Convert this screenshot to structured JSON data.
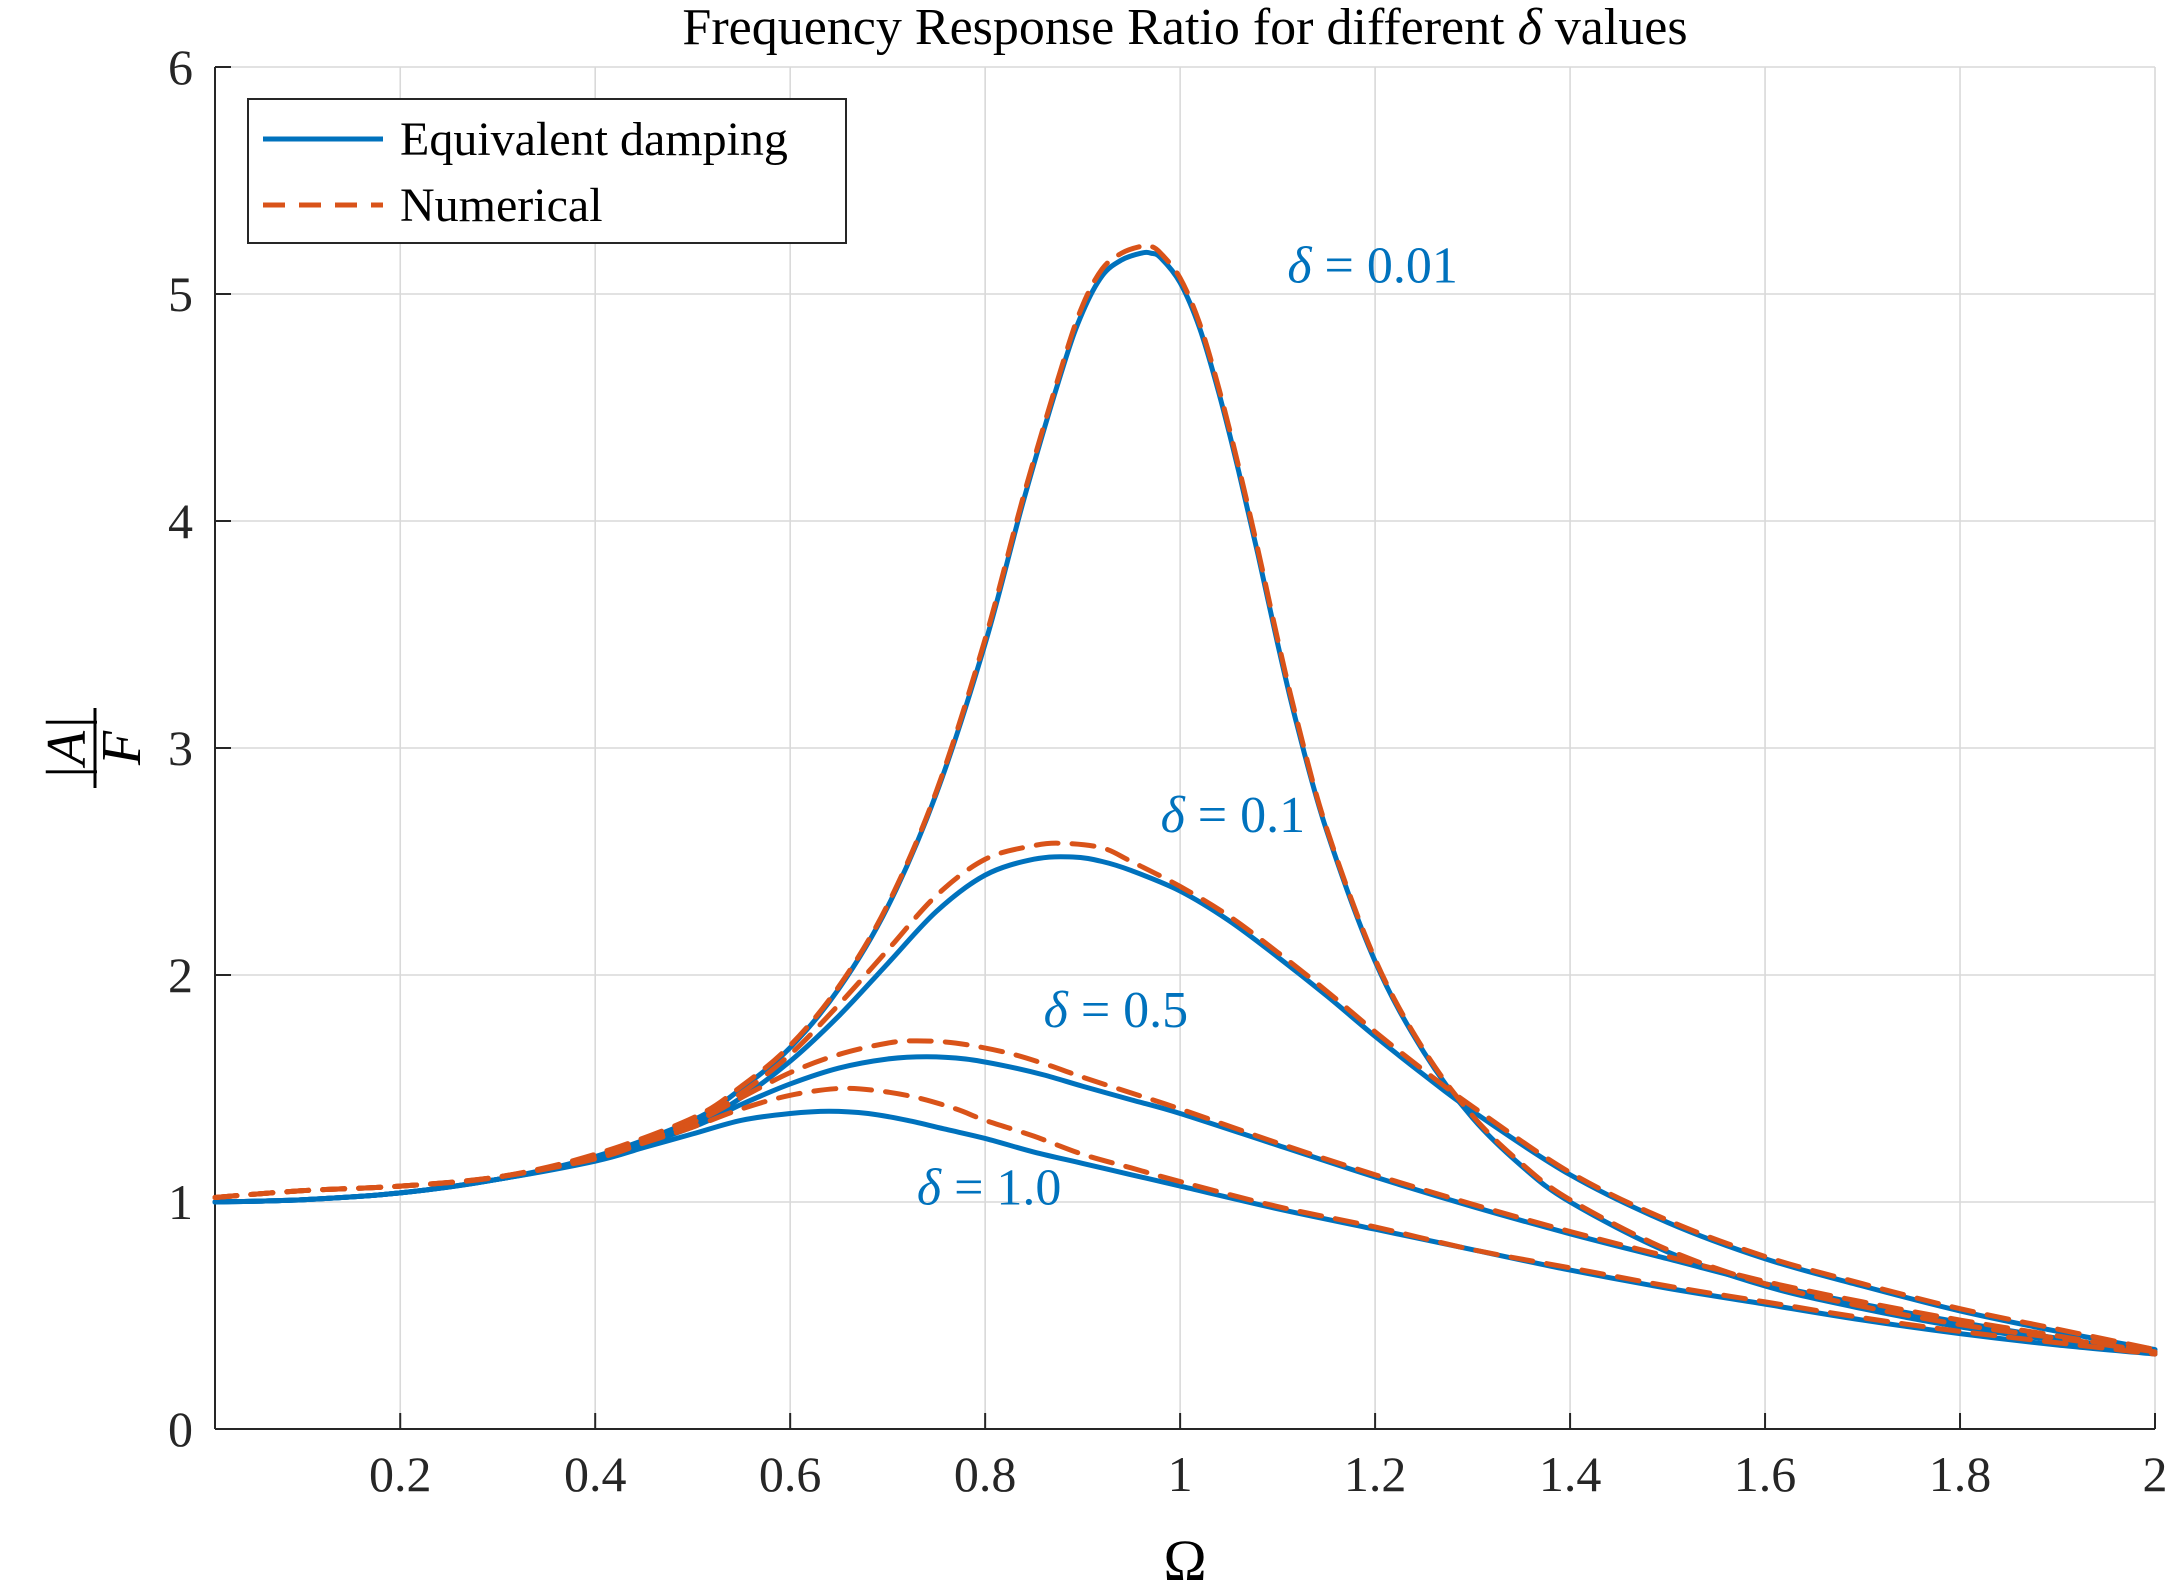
{
  "chart_data": {
    "type": "line",
    "title": "Frequency Response Ratio for different δ values",
    "title_parts": {
      "before": "Frequency Response Ratio for different ",
      "symbol": "δ",
      "after": " values"
    },
    "xlabel": "Ω",
    "ylabel": {
      "numerator": "|A|",
      "denominator": "F"
    },
    "xlim": [
      0.01,
      2
    ],
    "ylim": [
      0,
      6
    ],
    "xticks": [
      0.2,
      0.4,
      0.6,
      0.8,
      1,
      1.2,
      1.4,
      1.6,
      1.8,
      2
    ],
    "xtick_labels": [
      "0.2",
      "0.4",
      "0.6",
      "0.8",
      "1",
      "1.2",
      "1.4",
      "1.6",
      "1.8",
      "2"
    ],
    "yticks": [
      0,
      1,
      2,
      3,
      4,
      5,
      6
    ],
    "ytick_labels": [
      "0",
      "1",
      "2",
      "3",
      "4",
      "5",
      "6"
    ],
    "grid": true,
    "legend_position": "top-left",
    "legend": [
      {
        "label": "Equivalent damping",
        "style": "solid",
        "color": "#0072BD"
      },
      {
        "label": "Numerical",
        "style": "dashed",
        "color": "#D95319"
      }
    ],
    "colors": {
      "equivalent": "#0072BD",
      "numerical": "#D95319",
      "annotation": "#0072BD"
    },
    "annotations": [
      {
        "symbol": "δ",
        "text": " = 0.01",
        "x": 1.11,
        "y": 5.05
      },
      {
        "symbol": "δ",
        "text": " = 0.1",
        "x": 0.98,
        "y": 2.63
      },
      {
        "symbol": "δ",
        "text": " = 0.5",
        "x": 0.86,
        "y": 1.77
      },
      {
        "symbol": "δ",
        "text": " = 1.0",
        "x": 0.73,
        "y": 0.99
      }
    ],
    "series": [
      {
        "delta": "0.01",
        "kind": "equivalent",
        "x": [
          0.01,
          0.1,
          0.2,
          0.3,
          0.4,
          0.5,
          0.55,
          0.6,
          0.65,
          0.7,
          0.75,
          0.8,
          0.84,
          0.88,
          0.9,
          0.92,
          0.94,
          0.96,
          0.97,
          0.98,
          1.0,
          1.02,
          1.04,
          1.06,
          1.08,
          1.1,
          1.12,
          1.15,
          1.2,
          1.25,
          1.3,
          1.35,
          1.4,
          1.5,
          1.6,
          1.7,
          1.8,
          1.9,
          2.0
        ],
        "y": [
          1.0,
          1.01,
          1.04,
          1.1,
          1.2,
          1.36,
          1.5,
          1.68,
          1.94,
          2.3,
          2.8,
          3.46,
          4.1,
          4.68,
          4.92,
          5.08,
          5.15,
          5.18,
          5.18,
          5.16,
          5.05,
          4.85,
          4.56,
          4.22,
          3.85,
          3.46,
          3.1,
          2.64,
          2.06,
          1.66,
          1.37,
          1.16,
          1.0,
          0.78,
          0.63,
          0.53,
          0.45,
          0.39,
          0.34
        ]
      },
      {
        "delta": "0.01",
        "kind": "numerical",
        "x": [
          0.01,
          0.1,
          0.2,
          0.3,
          0.4,
          0.5,
          0.55,
          0.6,
          0.65,
          0.7,
          0.75,
          0.8,
          0.84,
          0.88,
          0.9,
          0.92,
          0.94,
          0.96,
          0.97,
          0.98,
          1.0,
          1.02,
          1.04,
          1.06,
          1.08,
          1.1,
          1.12,
          1.15,
          1.2,
          1.25,
          1.3,
          1.35,
          1.4,
          1.5,
          1.6,
          1.7,
          1.8,
          1.9,
          2.0
        ],
        "y": [
          1.02,
          1.05,
          1.07,
          1.11,
          1.21,
          1.37,
          1.51,
          1.69,
          1.95,
          2.31,
          2.81,
          3.48,
          4.12,
          4.7,
          4.95,
          5.11,
          5.18,
          5.21,
          5.21,
          5.18,
          5.07,
          4.87,
          4.58,
          4.24,
          3.87,
          3.48,
          3.12,
          2.65,
          2.07,
          1.67,
          1.38,
          1.17,
          1.01,
          0.79,
          0.64,
          0.54,
          0.46,
          0.4,
          0.34
        ]
      },
      {
        "delta": "0.1",
        "kind": "equivalent",
        "x": [
          0.01,
          0.1,
          0.2,
          0.3,
          0.4,
          0.5,
          0.55,
          0.6,
          0.65,
          0.7,
          0.75,
          0.8,
          0.85,
          0.89,
          0.92,
          0.95,
          1.0,
          1.05,
          1.1,
          1.15,
          1.2,
          1.25,
          1.3,
          1.4,
          1.5,
          1.6,
          1.7,
          1.8,
          1.9,
          2.0
        ],
        "y": [
          1.0,
          1.01,
          1.04,
          1.1,
          1.19,
          1.34,
          1.46,
          1.62,
          1.82,
          2.05,
          2.28,
          2.44,
          2.51,
          2.52,
          2.5,
          2.46,
          2.37,
          2.24,
          2.08,
          1.91,
          1.73,
          1.56,
          1.4,
          1.12,
          0.91,
          0.75,
          0.63,
          0.52,
          0.43,
          0.35
        ]
      },
      {
        "delta": "0.1",
        "kind": "numerical",
        "x": [
          0.01,
          0.1,
          0.2,
          0.3,
          0.4,
          0.5,
          0.55,
          0.6,
          0.65,
          0.7,
          0.75,
          0.8,
          0.85,
          0.88,
          0.92,
          0.95,
          1.0,
          1.05,
          1.1,
          1.15,
          1.2,
          1.25,
          1.3,
          1.4,
          1.5,
          1.6,
          1.7,
          1.8,
          1.9,
          2.0
        ],
        "y": [
          1.02,
          1.05,
          1.07,
          1.11,
          1.2,
          1.35,
          1.48,
          1.65,
          1.87,
          2.11,
          2.35,
          2.51,
          2.57,
          2.58,
          2.56,
          2.5,
          2.39,
          2.26,
          2.1,
          1.93,
          1.75,
          1.58,
          1.42,
          1.13,
          0.92,
          0.76,
          0.64,
          0.53,
          0.44,
          0.35
        ]
      },
      {
        "delta": "0.5",
        "kind": "equivalent",
        "x": [
          0.01,
          0.1,
          0.2,
          0.3,
          0.4,
          0.5,
          0.55,
          0.6,
          0.65,
          0.7,
          0.74,
          0.78,
          0.82,
          0.86,
          0.9,
          0.95,
          1.0,
          1.1,
          1.2,
          1.3,
          1.4,
          1.5,
          1.6,
          1.7,
          1.8,
          1.9,
          2.0
        ],
        "y": [
          1.0,
          1.01,
          1.04,
          1.1,
          1.19,
          1.33,
          1.43,
          1.52,
          1.59,
          1.63,
          1.64,
          1.63,
          1.6,
          1.56,
          1.51,
          1.45,
          1.39,
          1.25,
          1.11,
          0.98,
          0.86,
          0.75,
          0.64,
          0.55,
          0.47,
          0.4,
          0.34
        ]
      },
      {
        "delta": "0.5",
        "kind": "numerical",
        "x": [
          0.01,
          0.1,
          0.2,
          0.3,
          0.4,
          0.5,
          0.55,
          0.6,
          0.65,
          0.7,
          0.73,
          0.77,
          0.82,
          0.86,
          0.9,
          0.95,
          1.0,
          1.1,
          1.2,
          1.3,
          1.4,
          1.5,
          1.6,
          1.7,
          1.8,
          1.9,
          2.0
        ],
        "y": [
          1.02,
          1.05,
          1.07,
          1.11,
          1.2,
          1.35,
          1.46,
          1.57,
          1.65,
          1.7,
          1.71,
          1.7,
          1.66,
          1.61,
          1.55,
          1.48,
          1.41,
          1.26,
          1.12,
          0.99,
          0.87,
          0.76,
          0.65,
          0.56,
          0.48,
          0.41,
          0.34
        ]
      },
      {
        "delta": "1.0",
        "kind": "equivalent",
        "x": [
          0.01,
          0.1,
          0.2,
          0.3,
          0.4,
          0.45,
          0.5,
          0.55,
          0.6,
          0.64,
          0.68,
          0.72,
          0.76,
          0.8,
          0.85,
          0.9,
          0.95,
          1.0,
          1.1,
          1.2,
          1.3,
          1.4,
          1.5,
          1.6,
          1.7,
          1.8,
          1.9,
          2.0
        ],
        "y": [
          1.0,
          1.01,
          1.04,
          1.1,
          1.18,
          1.24,
          1.3,
          1.36,
          1.39,
          1.4,
          1.39,
          1.36,
          1.32,
          1.28,
          1.22,
          1.17,
          1.12,
          1.07,
          0.97,
          0.88,
          0.79,
          0.7,
          0.62,
          0.55,
          0.48,
          0.42,
          0.37,
          0.33
        ]
      },
      {
        "delta": "1.0",
        "kind": "numerical",
        "x": [
          0.01,
          0.1,
          0.2,
          0.3,
          0.4,
          0.45,
          0.5,
          0.55,
          0.6,
          0.65,
          0.69,
          0.73,
          0.77,
          0.8,
          0.85,
          0.9,
          0.95,
          1.0,
          1.1,
          1.2,
          1.3,
          1.4,
          1.5,
          1.6,
          1.7,
          1.8,
          1.9,
          2.0
        ],
        "y": [
          1.02,
          1.05,
          1.07,
          1.11,
          1.19,
          1.26,
          1.33,
          1.41,
          1.47,
          1.5,
          1.49,
          1.46,
          1.41,
          1.36,
          1.29,
          1.21,
          1.15,
          1.09,
          0.98,
          0.89,
          0.79,
          0.71,
          0.63,
          0.56,
          0.49,
          0.43,
          0.38,
          0.33
        ]
      }
    ]
  }
}
